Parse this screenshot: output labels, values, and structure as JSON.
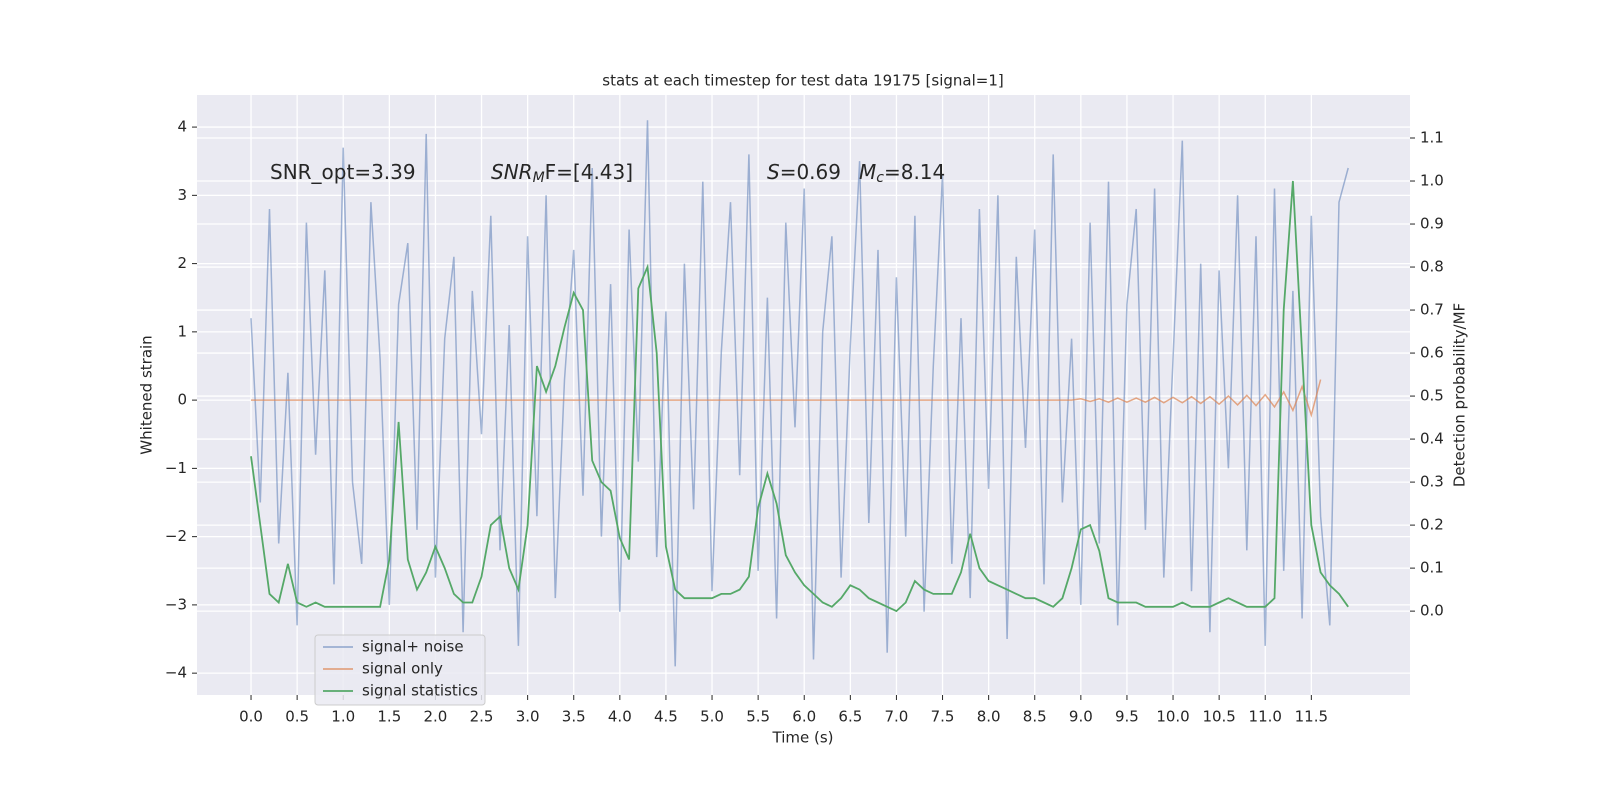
{
  "chart_data": {
    "type": "line",
    "title": "stats at each timestep for test data 19175 [signal=1]",
    "xlabel": "Time (s)",
    "ylabel": "Whitened strain",
    "y2label": "Detection probability/MF",
    "annotations": [
      {
        "parts": [
          "SNR_opt=3.39"
        ]
      },
      {
        "parts": [
          "SNR",
          "M",
          "F=[4.43]"
        ]
      },
      {
        "parts": [
          "S",
          "=0.69"
        ]
      },
      {
        "parts": [
          "M",
          "c",
          "=8.14"
        ]
      }
    ],
    "xlim": [
      -0.586,
      12.57
    ],
    "ylim": [
      -4.32,
      4.47
    ],
    "y2lim": [
      -0.195,
      1.2
    ],
    "xticks": [
      {
        "value": 0,
        "label": "0.0"
      },
      0.5,
      {
        "value": 1,
        "label": "1.0"
      },
      1.5,
      {
        "value": 2,
        "label": "2.0"
      },
      2.5,
      {
        "value": 3,
        "label": "3.0"
      },
      3.5,
      {
        "value": 4,
        "label": "4.0"
      },
      4.5,
      {
        "value": 5,
        "label": "5.0"
      },
      5.5,
      {
        "value": 6,
        "label": "6.0"
      },
      6.5,
      {
        "value": 7,
        "label": "7.0"
      },
      7.5,
      {
        "value": 8,
        "label": "8.0"
      },
      8.5,
      {
        "value": 9,
        "label": "9.0"
      },
      9.5,
      {
        "value": 10,
        "label": "10.0"
      },
      10.5,
      {
        "value": 11,
        "label": "11.0"
      },
      11.5
    ],
    "yticks": [
      {
        "value": -4,
        "label": "−4"
      },
      {
        "value": -3,
        "label": "−3"
      },
      {
        "value": -2,
        "label": "−2"
      },
      {
        "value": -1,
        "label": "−1"
      },
      0,
      1,
      2,
      3,
      4
    ],
    "y2ticks": [
      {
        "value": 0,
        "label": "0.0"
      },
      0.1,
      0.2,
      0.3,
      0.4,
      0.5,
      0.6,
      0.7,
      0.8,
      0.9,
      {
        "value": 1,
        "label": "1.0"
      },
      1.1
    ],
    "grid": true,
    "legend": "lower left",
    "x": [
      0.0,
      0.1,
      0.2,
      0.3,
      0.4,
      0.5,
      0.6,
      0.7,
      0.8,
      0.9,
      1.0,
      1.1,
      1.2,
      1.3,
      1.4,
      1.5,
      1.6,
      1.7,
      1.8,
      1.9,
      2.0,
      2.1,
      2.2,
      2.3,
      2.4,
      2.5,
      2.6,
      2.7,
      2.8,
      2.9,
      3.0,
      3.1,
      3.2,
      3.3,
      3.4,
      3.5,
      3.6,
      3.7,
      3.8,
      3.9,
      4.0,
      4.1,
      4.2,
      4.3,
      4.4,
      4.5,
      4.6,
      4.7,
      4.8,
      4.9,
      5.0,
      5.1,
      5.2,
      5.3,
      5.4,
      5.5,
      5.6,
      5.7,
      5.8,
      5.9,
      6.0,
      6.1,
      6.2,
      6.3,
      6.4,
      6.5,
      6.6,
      6.7,
      6.8,
      6.9,
      7.0,
      7.1,
      7.2,
      7.3,
      7.4,
      7.5,
      7.6,
      7.7,
      7.8,
      7.9,
      8.0,
      8.1,
      8.2,
      8.3,
      8.4,
      8.5,
      8.6,
      8.7,
      8.8,
      8.9,
      9.0,
      9.1,
      9.2,
      9.3,
      9.4,
      9.5,
      9.6,
      9.7,
      9.8,
      9.9,
      10.0,
      10.1,
      10.2,
      10.3,
      10.4,
      10.5,
      10.6,
      10.7,
      10.8,
      10.9,
      11.0,
      11.1,
      11.2,
      11.3,
      11.4,
      11.5,
      11.6,
      11.7,
      11.8,
      11.9
    ],
    "series": [
      {
        "name": "signal+ noise",
        "color": "#4c72b0",
        "opacity": 0.5,
        "values": [
          1.2,
          -1.5,
          2.8,
          -2.1,
          0.4,
          -3.3,
          2.6,
          -0.8,
          1.9,
          -2.7,
          3.7,
          -1.2,
          -2.4,
          2.9,
          0.6,
          -3.0,
          1.4,
          2.3,
          -1.9,
          3.9,
          -2.6,
          0.9,
          2.1,
          -3.4,
          1.6,
          -0.5,
          2.7,
          -2.2,
          1.1,
          -3.6,
          2.4,
          -1.7,
          3.0,
          -2.9,
          0.3,
          2.2,
          -1.4,
          3.4,
          -2.0,
          1.7,
          -3.1,
          2.5,
          -0.9,
          4.1,
          -2.3,
          1.3,
          -3.9,
          2.0,
          -1.6,
          3.2,
          -2.8,
          0.7,
          2.9,
          -1.1,
          3.6,
          -2.5,
          1.5,
          -3.2,
          2.6,
          -0.4,
          3.1,
          -3.8,
          1.0,
          2.4,
          -2.6,
          0.8,
          3.5,
          -1.8,
          2.2,
          -3.7,
          1.8,
          -2.0,
          2.7,
          -3.1,
          0.5,
          3.3,
          -2.4,
          1.2,
          -2.9,
          2.8,
          -1.3,
          3.0,
          -3.5,
          2.1,
          -0.7,
          2.5,
          -2.7,
          3.6,
          -1.5,
          0.9,
          -3.0,
          2.6,
          -2.1,
          3.2,
          -3.3,
          1.4,
          2.8,
          -1.9,
          3.1,
          -2.6,
          0.6,
          3.8,
          -2.8,
          2.0,
          -3.4,
          1.9,
          -1.0,
          3.0,
          -2.2,
          2.4,
          -3.6,
          3.1,
          -2.5,
          1.6,
          -3.2,
          2.7,
          -1.7,
          -3.3,
          2.9,
          3.4
        ]
      },
      {
        "name": "signal only",
        "color": "#dd8452",
        "opacity": 0.7,
        "values": [
          0,
          0,
          0,
          0,
          0,
          0,
          0,
          0,
          0,
          0,
          0,
          0,
          0,
          0,
          0,
          0,
          0,
          0,
          0,
          0,
          0,
          0,
          0,
          0,
          0,
          0,
          0,
          0,
          0,
          0,
          0,
          0,
          0,
          0,
          0,
          0,
          0,
          0,
          0,
          0,
          0,
          0,
          0,
          0,
          0,
          0,
          0,
          0,
          0,
          0,
          0,
          0,
          0,
          0,
          0,
          0,
          0,
          0,
          0,
          0,
          0,
          0,
          0,
          0,
          0,
          0,
          0,
          0,
          0,
          0,
          0,
          0,
          0,
          0,
          0,
          0,
          0,
          0,
          0,
          0,
          0,
          0,
          0,
          0,
          0,
          0,
          0,
          0,
          0,
          0,
          0.02,
          -0.02,
          0.02,
          -0.03,
          0.03,
          -0.03,
          0.03,
          -0.03,
          0.04,
          -0.04,
          0.04,
          -0.04,
          0.05,
          -0.05,
          0.05,
          -0.06,
          0.06,
          -0.07,
          0.07,
          -0.08,
          0.08,
          -0.1,
          0.12,
          -0.15,
          0.2,
          -0.22,
          0.3,
          null,
          null,
          null
        ]
      },
      {
        "name": "signal statistics",
        "color": "#55a868",
        "opacity": 1,
        "axis": "y2",
        "values": [
          0.36,
          0.2,
          0.04,
          0.02,
          0.11,
          0.02,
          0.01,
          0.02,
          0.01,
          0.01,
          0.01,
          0.01,
          0.01,
          0.01,
          0.01,
          0.12,
          0.44,
          0.12,
          0.05,
          0.09,
          0.15,
          0.1,
          0.04,
          0.02,
          0.02,
          0.08,
          0.2,
          0.22,
          0.1,
          0.05,
          0.2,
          0.57,
          0.51,
          0.57,
          0.66,
          0.74,
          0.7,
          0.35,
          0.3,
          0.28,
          0.17,
          0.12,
          0.75,
          0.8,
          0.6,
          0.15,
          0.05,
          0.03,
          0.03,
          0.03,
          0.03,
          0.04,
          0.04,
          0.05,
          0.08,
          0.24,
          0.32,
          0.25,
          0.13,
          0.09,
          0.06,
          0.04,
          0.02,
          0.01,
          0.03,
          0.06,
          0.05,
          0.03,
          0.02,
          0.01,
          0.0,
          0.02,
          0.07,
          0.05,
          0.04,
          0.04,
          0.04,
          0.09,
          0.18,
          0.1,
          0.07,
          0.06,
          0.05,
          0.04,
          0.03,
          0.03,
          0.02,
          0.01,
          0.03,
          0.1,
          0.19,
          0.2,
          0.14,
          0.03,
          0.02,
          0.02,
          0.02,
          0.01,
          0.01,
          0.01,
          0.01,
          0.02,
          0.01,
          0.01,
          0.01,
          0.02,
          0.03,
          0.02,
          0.01,
          0.01,
          0.01,
          0.03,
          0.7,
          1.0,
          0.6,
          0.2,
          0.09,
          0.06,
          0.04,
          0.01
        ]
      }
    ]
  }
}
